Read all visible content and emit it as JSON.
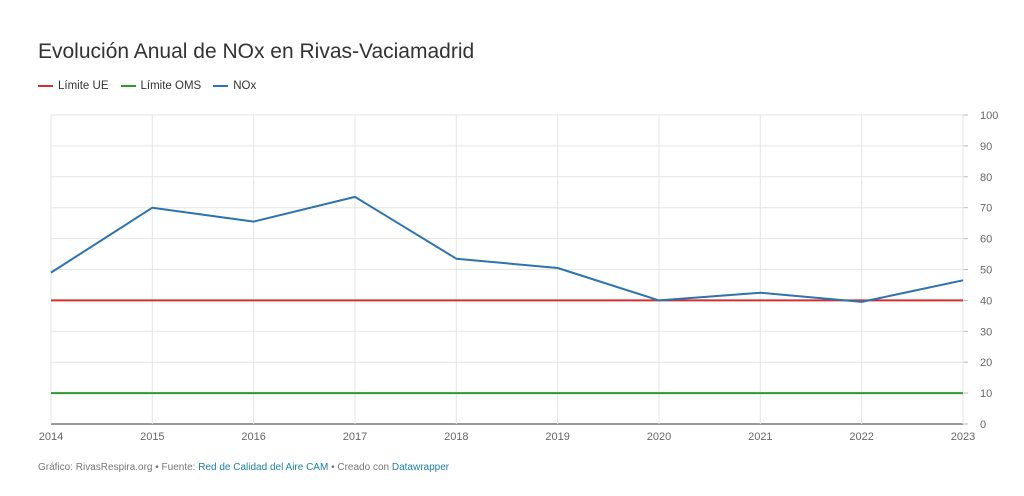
{
  "title": "Evolución Anual de NOx en Rivas-Vaciamadrid",
  "legend": [
    {
      "label": "Límite UE",
      "color": "#d62d32"
    },
    {
      "label": "Límite OMS",
      "color": "#2a9a2a"
    },
    {
      "label": "NOx",
      "color": "#2e73ad"
    }
  ],
  "footer": {
    "prefix": "Gráfico: RivasRespira.org • Fuente: ",
    "source_link": "Red de Calidad del Aire CAM",
    "middle": " • Creado con ",
    "tool_link": "Datawrapper"
  },
  "chart_data": {
    "type": "line",
    "title": "Evolución Anual de NOx en Rivas-Vaciamadrid",
    "xlabel": "",
    "ylabel": "",
    "x": [
      "2014",
      "2015",
      "2016",
      "2017",
      "2018",
      "2019",
      "2020",
      "2021",
      "2022",
      "2023"
    ],
    "ylim": [
      0,
      100
    ],
    "yticks": [
      0,
      10,
      20,
      30,
      40,
      50,
      60,
      70,
      80,
      90,
      100
    ],
    "grid": true,
    "legend_position": "top-left",
    "y_axis_side": "right",
    "series": [
      {
        "name": "Límite UE",
        "color": "#d62d32",
        "values": [
          40,
          40,
          40,
          40,
          40,
          40,
          40,
          40,
          40,
          40
        ]
      },
      {
        "name": "Límite OMS",
        "color": "#2a9a2a",
        "values": [
          10,
          10,
          10,
          10,
          10,
          10,
          10,
          10,
          10,
          10
        ]
      },
      {
        "name": "NOx",
        "color": "#2e73ad",
        "values": [
          49,
          70,
          65.5,
          73.5,
          53.5,
          50.5,
          40,
          42.5,
          39.5,
          46.5
        ]
      }
    ]
  }
}
